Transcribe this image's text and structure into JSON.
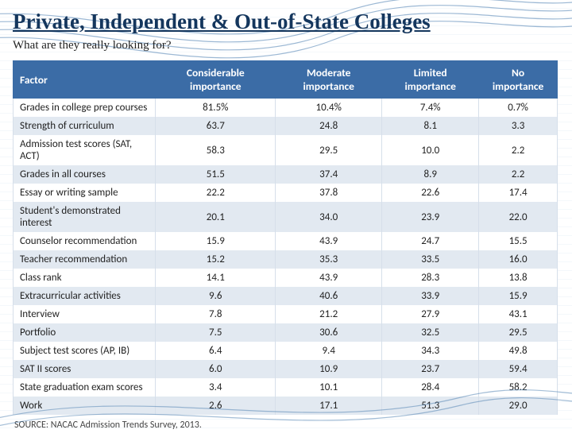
{
  "title": "Private, Independent & Out-of-State Colleges",
  "subtitle": "What are they really looking for?",
  "table": {
    "columns": [
      "Factor",
      "Considerable importance",
      "Moderate importance",
      "Limited importance",
      "No importance"
    ],
    "rows": [
      [
        "Grades in college prep courses",
        "81.5%",
        "10.4%",
        "7.4%",
        "0.7%"
      ],
      [
        "Strength of curriculum",
        "63.7",
        "24.8",
        "8.1",
        "3.3"
      ],
      [
        "Admission test scores (SAT, ACT)",
        "58.3",
        "29.5",
        "10.0",
        "2.2"
      ],
      [
        "Grades in all courses",
        "51.5",
        "37.4",
        "8.9",
        "2.2"
      ],
      [
        "Essay or writing sample",
        "22.2",
        "37.8",
        "22.6",
        "17.4"
      ],
      [
        "Student's demonstrated interest",
        "20.1",
        "34.0",
        "23.9",
        "22.0"
      ],
      [
        "Counselor recommendation",
        "15.9",
        "43.9",
        "24.7",
        "15.5"
      ],
      [
        "Teacher recommendation",
        "15.2",
        "35.3",
        "33.5",
        "16.0"
      ],
      [
        "Class rank",
        "14.1",
        "43.9",
        "28.3",
        "13.8"
      ],
      [
        "Extracurricular activities",
        "9.6",
        "40.6",
        "33.9",
        "15.9"
      ],
      [
        "Interview",
        "7.8",
        "21.2",
        "27.9",
        "43.1"
      ],
      [
        "Portfolio",
        "7.5",
        "30.6",
        "32.5",
        "29.5"
      ],
      [
        "Subject test scores (AP, IB)",
        "6.4",
        "9.4",
        "34.3",
        "49.8"
      ],
      [
        "SAT II scores",
        "6.0",
        "10.9",
        "23.7",
        "59.4"
      ],
      [
        "State graduation exam scores",
        "3.4",
        "10.1",
        "28.4",
        "58.2"
      ],
      [
        "Work",
        "2.6",
        "17.1",
        "51.3",
        "29.0"
      ]
    ],
    "header_bg": "#3b6ca6",
    "header_fg": "#ffffff",
    "row_even_bg": "#e2e9f1",
    "row_odd_bg": "#ffffff"
  },
  "source": "SOURCE: NACAC Admission Trends Survey, 2013."
}
